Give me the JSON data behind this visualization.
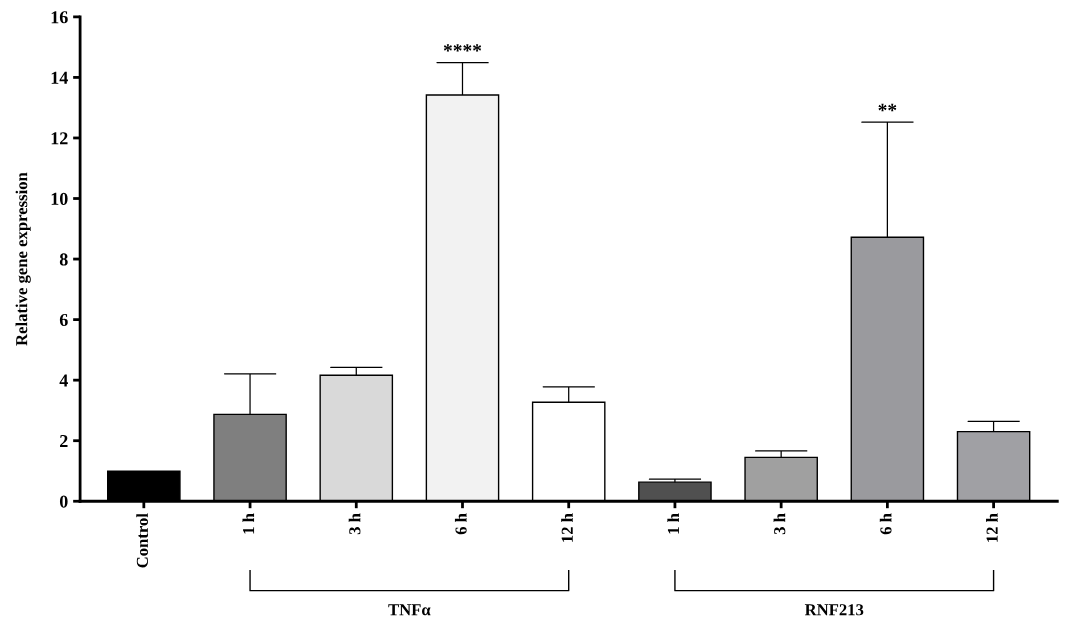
{
  "chart_data": {
    "type": "bar",
    "ylabel": "Relative gene expression",
    "categories": [
      "Control",
      "1 h",
      "3 h",
      "6 h",
      "12 h",
      "1 h",
      "3 h",
      "6 h",
      "12 h"
    ],
    "values": [
      0.99,
      2.87,
      4.16,
      13.42,
      3.27,
      0.63,
      1.45,
      8.72,
      2.3
    ],
    "errors": [
      null,
      [
        2.87,
        4.21
      ],
      [
        4.16,
        4.42
      ],
      [
        13.42,
        14.49
      ],
      [
        3.27,
        3.78
      ],
      [
        0.63,
        0.73
      ],
      [
        1.45,
        1.66
      ],
      [
        8.72,
        12.52
      ],
      [
        2.3,
        2.64
      ]
    ],
    "colors": [
      "#000000",
      "#7f7f7f",
      "#d9d9d9",
      "#f2f2f2",
      "#ffffff",
      "#505050",
      "#a0a0a0",
      "#9a9a9e",
      "#a0a0a4"
    ],
    "ylim": [
      0,
      16
    ],
    "yticks": [
      0,
      2,
      4,
      6,
      8,
      10,
      12,
      14,
      16
    ],
    "annotations": [
      {
        "text": "****",
        "y": 14.49
      },
      {
        "text": "**",
        "y": 12.52
      },
      "TNFα",
      "RNF213"
    ],
    "grid": false,
    "legend": false
  }
}
